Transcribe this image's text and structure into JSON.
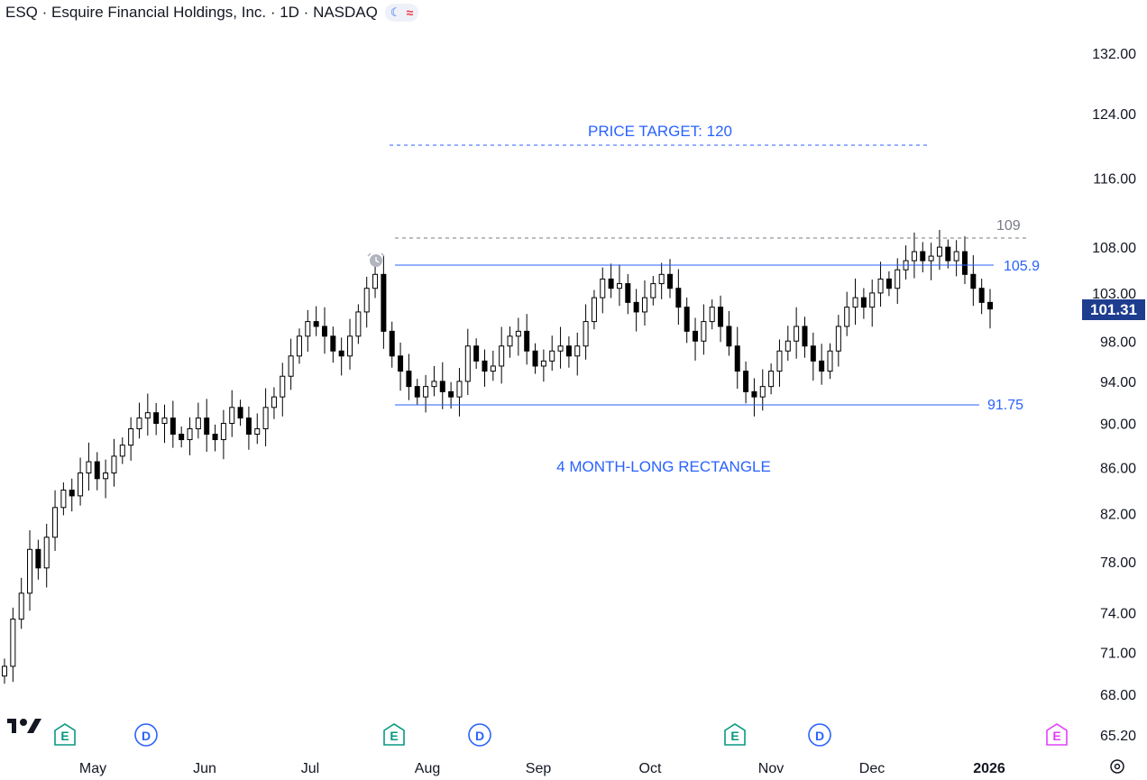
{
  "header": {
    "title": "ESQ · Esquire Financial Holdings, Inc. · 1D · NASDAQ",
    "icons": [
      "market-status-moon-icon",
      "wave-icon"
    ]
  },
  "annotations": {
    "price_target": "PRICE TARGET: 120",
    "rectangle_label": "4 MONTH-LONG RECTANGLE",
    "level_109": "109",
    "level_105_9": "105.9",
    "level_91_75": "91.75"
  },
  "last_price": "101.31",
  "colors": {
    "annotation_blue": "#2962ff",
    "dashed_gray": "#787b86",
    "candle": "#000000",
    "price_tag": "#1e3d8f",
    "earnings": "#089981",
    "dividend": "#2962ff",
    "future_earnings": "#e040fb"
  },
  "events": [
    {
      "type": "E",
      "month": "Apr"
    },
    {
      "type": "D",
      "month": "May"
    },
    {
      "type": "E",
      "month": "Jul"
    },
    {
      "type": "D",
      "month": "Aug"
    },
    {
      "type": "E",
      "month": "Oct"
    },
    {
      "type": "D",
      "month": "Nov"
    },
    {
      "type": "E",
      "month": "Jan"
    }
  ],
  "chart_data": {
    "type": "candlestick",
    "scale": "log",
    "x_labels": [
      "May",
      "Jun",
      "Jul",
      "Aug",
      "Sep",
      "Oct",
      "Nov",
      "Dec",
      "2026"
    ],
    "y_ticks": [
      "132.00",
      "124.00",
      "116.00",
      "108.00",
      "103.00",
      "98.00",
      "94.00",
      "90.00",
      "86.00",
      "82.00",
      "78.00",
      "74.00",
      "71.00",
      "68.00",
      "65.20"
    ],
    "horizontal_levels": [
      {
        "value": 120,
        "style": "dashed",
        "color": "#2962ff"
      },
      {
        "value": 109,
        "style": "dashed",
        "color": "#787b86"
      },
      {
        "value": 105.9,
        "style": "solid",
        "color": "#2962ff"
      },
      {
        "value": 91.75,
        "style": "solid",
        "color": "#2962ff"
      }
    ],
    "last_price": 101.31,
    "approx_closes": [
      70.0,
      73.5,
      75.5,
      79.0,
      77.5,
      80.0,
      82.5,
      84.0,
      83.5,
      85.5,
      86.5,
      85.0,
      85.5,
      87.0,
      88.0,
      89.5,
      90.5,
      91.0,
      90.0,
      90.5,
      89.0,
      88.5,
      89.5,
      90.5,
      89.0,
      88.5,
      90.0,
      91.5,
      90.5,
      89.0,
      89.5,
      91.5,
      92.5,
      94.5,
      96.5,
      98.5,
      100.0,
      99.5,
      98.5,
      97.0,
      96.5,
      98.5,
      101.0,
      103.5,
      105.0,
      99.0,
      96.5,
      95.0,
      93.5,
      92.5,
      93.5,
      94.0,
      93.0,
      92.5,
      94.0,
      97.5,
      96.0,
      95.0,
      95.5,
      97.5,
      98.5,
      99.0,
      97.0,
      95.5,
      96.0,
      97.0,
      97.5,
      96.5,
      97.5,
      100.0,
      102.5,
      104.5,
      103.5,
      104.0,
      102.0,
      101.0,
      102.5,
      104.0,
      105.0,
      103.5,
      101.5,
      99.0,
      98.0,
      100.0,
      101.5,
      99.5,
      97.5,
      95.0,
      93.0,
      92.5,
      93.5,
      95.0,
      97.0,
      98.0,
      99.5,
      97.5,
      96.0,
      95.0,
      97.0,
      99.5,
      101.5,
      102.5,
      101.5,
      103.0,
      104.5,
      103.5,
      105.5,
      106.5,
      107.5,
      106.5,
      107.0,
      108.0,
      106.5,
      107.5,
      105.0,
      103.5,
      102.0,
      101.31
    ]
  }
}
